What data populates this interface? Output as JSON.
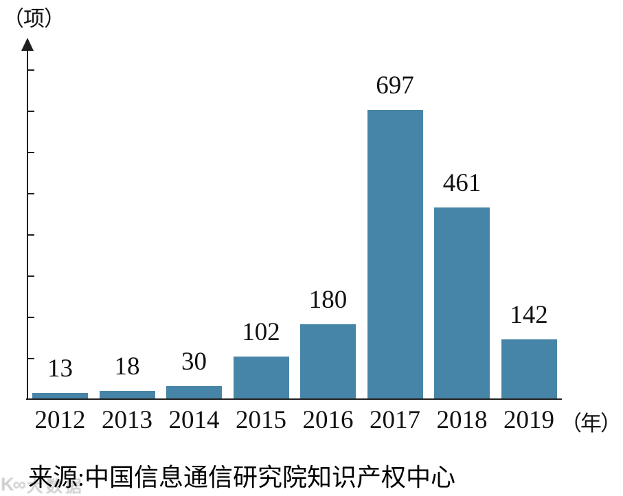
{
  "chart_data": {
    "type": "bar",
    "title": "",
    "categories": [
      "2012",
      "2013",
      "2014",
      "2015",
      "2016",
      "2017",
      "2018",
      "2019"
    ],
    "values": [
      13,
      18,
      30,
      102,
      180,
      697,
      461,
      142
    ],
    "y_axis_unit_label": "（项）",
    "x_axis_unit_label": "（年）",
    "ylim": [
      0,
      800
    ],
    "y_tick_count": 8,
    "y_tick_labels_shown": false,
    "grid": "off",
    "legend": "none",
    "bar_color": "#4785a8",
    "axis_color": "#1f1f1f",
    "label_color": "#111111"
  },
  "source": {
    "label": "来源:中国信息通信研究院知识产权中心"
  },
  "watermark": {
    "logo": "K∞",
    "text": "大数据"
  }
}
